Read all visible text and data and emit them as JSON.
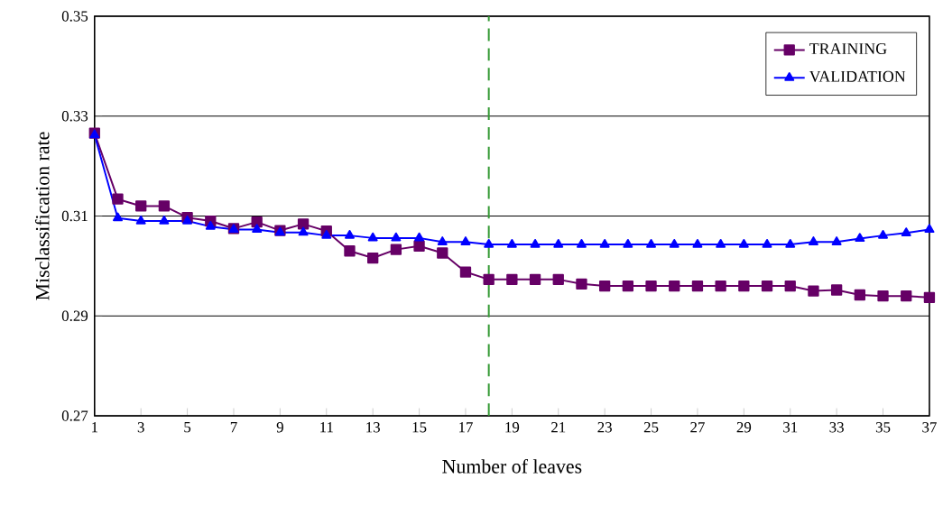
{
  "chart_data": {
    "type": "line",
    "xlabel": "Number of leaves",
    "ylabel": "Misclassification rate",
    "x": [
      1,
      2,
      3,
      4,
      5,
      6,
      7,
      8,
      9,
      10,
      11,
      12,
      13,
      14,
      15,
      16,
      17,
      18,
      19,
      20,
      21,
      22,
      23,
      24,
      25,
      26,
      27,
      28,
      29,
      30,
      31,
      32,
      33,
      34,
      35,
      36,
      37
    ],
    "series": [
      {
        "name": "TRAINING",
        "color": "#660066",
        "marker": "square",
        "values": [
          0.3266,
          0.3134,
          0.312,
          0.312,
          0.3097,
          0.309,
          0.3075,
          0.3088,
          0.3071,
          0.3084,
          0.307,
          0.303,
          0.3016,
          0.3033,
          0.304,
          0.3026,
          0.2988,
          0.2973,
          0.2973,
          0.2973,
          0.2973,
          0.2964,
          0.296,
          0.296,
          0.296,
          0.296,
          0.296,
          0.296,
          0.296,
          0.296,
          0.296,
          0.295,
          0.2952,
          0.2942,
          0.294,
          0.294,
          0.2937
        ]
      },
      {
        "name": "VALIDATION",
        "color": "#0000ff",
        "marker": "triangle",
        "values": [
          0.3262,
          0.3096,
          0.309,
          0.309,
          0.309,
          0.3079,
          0.3073,
          0.3073,
          0.3067,
          0.3067,
          0.3061,
          0.3061,
          0.3056,
          0.3056,
          0.3056,
          0.3048,
          0.3048,
          0.3043,
          0.3043,
          0.3043,
          0.3043,
          0.3043,
          0.3043,
          0.3043,
          0.3043,
          0.3043,
          0.3043,
          0.3043,
          0.3043,
          0.3043,
          0.3043,
          0.3048,
          0.3048,
          0.3055,
          0.3061,
          0.3066,
          0.3073
        ]
      }
    ],
    "xlim": [
      1,
      37
    ],
    "xticks": [
      1,
      3,
      5,
      7,
      9,
      11,
      13,
      15,
      17,
      19,
      21,
      23,
      25,
      27,
      29,
      31,
      33,
      35,
      37
    ],
    "ylim": [
      0.27,
      0.35
    ],
    "yticks": [
      0.27,
      0.29,
      0.31,
      0.33,
      0.35
    ],
    "ref_lines": [
      {
        "axis": "x",
        "value": 18,
        "color": "#339933",
        "line_style": "dashed"
      }
    ],
    "grid": "y",
    "legend": "top right",
    "line_style": "solid"
  }
}
